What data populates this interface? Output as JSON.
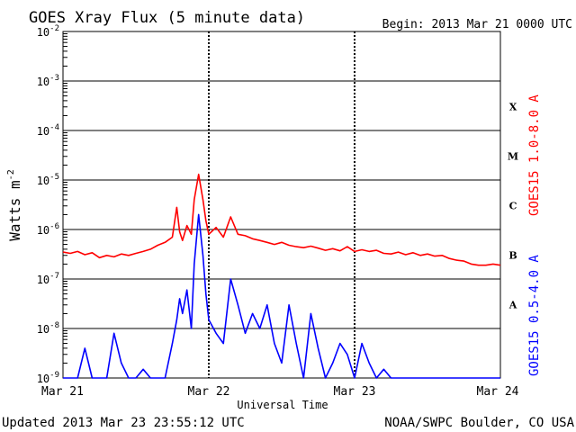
{
  "chart_data": {
    "type": "line",
    "title": "GOES Xray Flux (5 minute data)",
    "begin": "Begin:  2013 Mar 21 0000 UTC",
    "ylabel": "Watts m",
    "ylabel_sup": "-2",
    "xlabel": "Universal Time",
    "updated": "Updated 2013 Mar 23 23:55:12 UTC",
    "credit": "NOAA/SWPC Boulder, CO USA",
    "x_scale": "days",
    "xlim": [
      0,
      3
    ],
    "x_ticks": [
      {
        "x": 0,
        "label": "Mar 21"
      },
      {
        "x": 1,
        "label": "Mar 22"
      },
      {
        "x": 2,
        "label": "Mar 23"
      },
      {
        "x": 3,
        "label": "Mar 24"
      }
    ],
    "y_scale": "log",
    "ylim": [
      1e-09,
      0.01
    ],
    "y_ticks": [
      {
        "exp": -9,
        "label": "10",
        "sup": "-9"
      },
      {
        "exp": -8,
        "label": "10",
        "sup": "-8"
      },
      {
        "exp": -7,
        "label": "10",
        "sup": "-7"
      },
      {
        "exp": -6,
        "label": "10",
        "sup": "-6"
      },
      {
        "exp": -5,
        "label": "10",
        "sup": "-5"
      },
      {
        "exp": -4,
        "label": "10",
        "sup": "-4"
      },
      {
        "exp": -3,
        "label": "10",
        "sup": "-3"
      },
      {
        "exp": -2,
        "label": "10",
        "sup": "-2"
      }
    ],
    "flare_classes": [
      {
        "label": "A",
        "exp": -8
      },
      {
        "label": "B",
        "exp": -7
      },
      {
        "label": "C",
        "exp": -6
      },
      {
        "label": "M",
        "exp": -5
      },
      {
        "label": "X",
        "exp": -4
      }
    ],
    "grid": true,
    "series": [
      {
        "name": "GOES15 1.0-8.0 A",
        "color": "#ff0000",
        "x": [
          0,
          0.05,
          0.1,
          0.15,
          0.2,
          0.25,
          0.3,
          0.35,
          0.4,
          0.45,
          0.5,
          0.55,
          0.6,
          0.65,
          0.7,
          0.75,
          0.78,
          0.8,
          0.82,
          0.85,
          0.88,
          0.9,
          0.93,
          0.96,
          0.98,
          1.0,
          1.05,
          1.1,
          1.15,
          1.2,
          1.25,
          1.3,
          1.35,
          1.4,
          1.45,
          1.5,
          1.55,
          1.6,
          1.65,
          1.7,
          1.75,
          1.8,
          1.85,
          1.9,
          1.95,
          2.0,
          2.05,
          2.1,
          2.15,
          2.2,
          2.25,
          2.3,
          2.35,
          2.4,
          2.45,
          2.5,
          2.55,
          2.6,
          2.65,
          2.7,
          2.75,
          2.8,
          2.85,
          2.9,
          2.95,
          3.0
        ],
        "y": [
          3.5e-07,
          3.3e-07,
          3.6e-07,
          3.1e-07,
          3.4e-07,
          2.7e-07,
          3e-07,
          2.8e-07,
          3.2e-07,
          3e-07,
          3.3e-07,
          3.6e-07,
          4e-07,
          4.8e-07,
          5.5e-07,
          7e-07,
          2.8e-06,
          9e-07,
          6e-07,
          1.2e-06,
          8e-07,
          4e-06,
          1.3e-05,
          4e-06,
          1.5e-06,
          8e-07,
          1.1e-06,
          7e-07,
          1.8e-06,
          8e-07,
          7.5e-07,
          6.5e-07,
          6e-07,
          5.5e-07,
          5e-07,
          5.5e-07,
          4.8e-07,
          4.5e-07,
          4.3e-07,
          4.6e-07,
          4.2e-07,
          3.8e-07,
          4.1e-07,
          3.7e-07,
          4.5e-07,
          3.6e-07,
          3.9e-07,
          3.6e-07,
          3.8e-07,
          3.3e-07,
          3.2e-07,
          3.5e-07,
          3.1e-07,
          3.4e-07,
          3e-07,
          3.2e-07,
          2.9e-07,
          3e-07,
          2.6e-07,
          2.4e-07,
          2.3e-07,
          2e-07,
          1.9e-07,
          1.9e-07,
          2e-07,
          1.9e-07
        ]
      },
      {
        "name": "GOES15 0.5-4.0 A",
        "color": "#0000ff",
        "x": [
          0,
          0.05,
          0.1,
          0.15,
          0.2,
          0.25,
          0.3,
          0.35,
          0.4,
          0.45,
          0.5,
          0.55,
          0.6,
          0.65,
          0.7,
          0.75,
          0.78,
          0.8,
          0.82,
          0.85,
          0.88,
          0.9,
          0.93,
          0.96,
          0.98,
          1.0,
          1.05,
          1.1,
          1.15,
          1.2,
          1.25,
          1.3,
          1.35,
          1.4,
          1.45,
          1.5,
          1.55,
          1.6,
          1.65,
          1.7,
          1.75,
          1.8,
          1.85,
          1.9,
          1.95,
          2.0,
          2.05,
          2.1,
          2.15,
          2.2,
          2.25,
          2.3,
          2.35,
          2.4,
          2.45,
          2.5,
          2.55,
          2.6,
          2.65,
          2.7,
          2.75,
          2.8,
          2.85,
          2.9,
          2.95,
          3.0
        ],
        "y": [
          1e-09,
          1e-09,
          1e-09,
          4e-09,
          1e-09,
          1e-09,
          1e-09,
          8e-09,
          2e-09,
          1e-09,
          1e-09,
          1.5e-09,
          1e-09,
          1e-09,
          1e-09,
          5e-09,
          1.5e-08,
          4e-08,
          2e-08,
          6e-08,
          1e-08,
          2e-07,
          2e-06,
          3e-07,
          5e-08,
          1.5e-08,
          8e-09,
          5e-09,
          1e-07,
          3e-08,
          8e-09,
          2e-08,
          1e-08,
          3e-08,
          5e-09,
          2e-09,
          3e-08,
          5e-09,
          1e-09,
          2e-08,
          4e-09,
          1e-09,
          2e-09,
          5e-09,
          3e-09,
          1e-09,
          5e-09,
          2e-09,
          1e-09,
          1.5e-09,
          1e-09,
          1e-09,
          1e-09,
          1e-09,
          1e-09,
          1e-09,
          1e-09,
          1e-09,
          1e-09,
          1e-09,
          1e-09,
          1e-09,
          1e-09,
          1e-09,
          1e-09,
          1e-09
        ]
      }
    ]
  }
}
